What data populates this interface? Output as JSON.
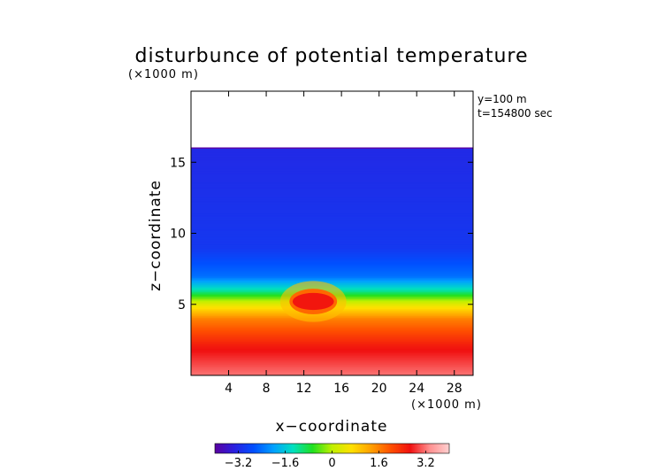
{
  "chart_data": {
    "type": "heatmap",
    "title": "disturbunce of potential temperature",
    "y_unit_label": "(×1000 m)",
    "x_unit_label": "(×1000 m)",
    "xlabel": "x−coordinate",
    "ylabel": "z−coordinate",
    "annotations": [
      "y=100 m",
      "t=154800 sec"
    ],
    "xlim": [
      0,
      30
    ],
    "ylim": [
      0,
      20
    ],
    "x_ticks": [
      4,
      8,
      12,
      16,
      20,
      24,
      28
    ],
    "x_tick_labels": [
      "4",
      "8",
      "12",
      "16",
      "20",
      "24",
      "28"
    ],
    "y_ticks": [
      5,
      10,
      15
    ],
    "y_tick_labels": [
      "5",
      "10",
      "15"
    ],
    "field": {
      "data_top_z": 16,
      "blob_center": [
        13,
        5.2
      ],
      "blob_radius": [
        2.2,
        0.6
      ],
      "blob_value": 2.6,
      "description_levels": [
        {
          "z": 0,
          "value": 3.2
        },
        {
          "z": 2,
          "value": 2.6
        },
        {
          "z": 4,
          "value": 1.6
        },
        {
          "z": 5,
          "value": 0.4
        },
        {
          "z": 6,
          "value": -1.2
        },
        {
          "z": 7,
          "value": -2.4
        },
        {
          "z": 9,
          "value": -3.0
        },
        {
          "z": 16,
          "value": -3.2
        }
      ]
    },
    "colorbar": {
      "range": [
        -4,
        4
      ],
      "ticks": [
        -3.2,
        -1.6,
        0,
        1.6,
        3.2
      ],
      "tick_labels": [
        "−3.2",
        "−1.6",
        "0",
        "1.6",
        "3.2"
      ],
      "colors": [
        "#5a00a0",
        "#2a20e0",
        "#0050ff",
        "#00a0ff",
        "#00e0c0",
        "#20e020",
        "#c0f000",
        "#ffe000",
        "#ffa000",
        "#ff5000",
        "#f01010",
        "#ff9090",
        "#ffd0d0"
      ]
    }
  }
}
